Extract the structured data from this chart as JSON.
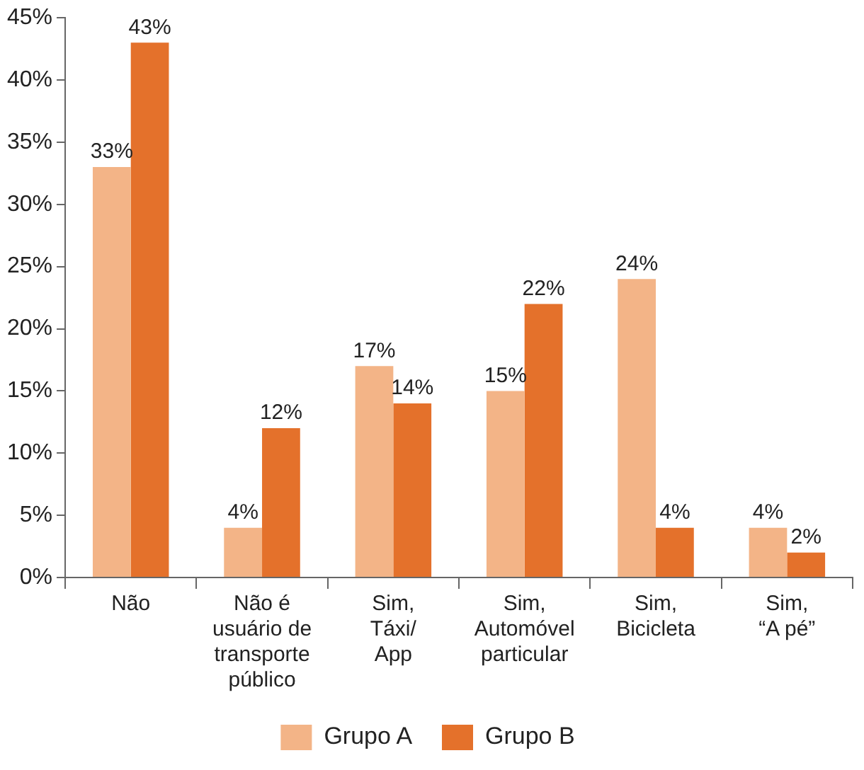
{
  "chart_data": {
    "type": "bar",
    "categories": [
      "Não",
      "Não é\nusuário de\ntransporte\npúblico",
      "Sim,\nTáxi/\nApp",
      "Sim,\nAutomóvel\nparticular",
      "Sim,\nBicicleta",
      "Sim,\n“A pé”"
    ],
    "series": [
      {
        "name": "Grupo A",
        "color": "#f3b487",
        "values": [
          33,
          4,
          17,
          15,
          24,
          4
        ],
        "value_labels": [
          "33%",
          "4%",
          "17%",
          "15%",
          "24%",
          "4%"
        ]
      },
      {
        "name": "Grupo B",
        "color": "#e4712b",
        "values": [
          43,
          12,
          14,
          22,
          4,
          2
        ],
        "value_labels": [
          "43%",
          "12%",
          "14%",
          "22%",
          "4%",
          "2%"
        ]
      }
    ],
    "ylim": [
      0,
      45
    ],
    "yticks": [
      {
        "value": 0,
        "label": "0%"
      },
      {
        "value": 5,
        "label": "5%"
      },
      {
        "value": 10,
        "label": "10%"
      },
      {
        "value": 15,
        "label": "15%"
      },
      {
        "value": 20,
        "label": "20%"
      },
      {
        "value": 25,
        "label": "25%"
      },
      {
        "value": 30,
        "label": "30%"
      },
      {
        "value": 35,
        "label": "35%"
      },
      {
        "value": 40,
        "label": "40%"
      },
      {
        "value": 45,
        "label": "45%"
      }
    ],
    "grid": false,
    "legend": "bottom"
  }
}
